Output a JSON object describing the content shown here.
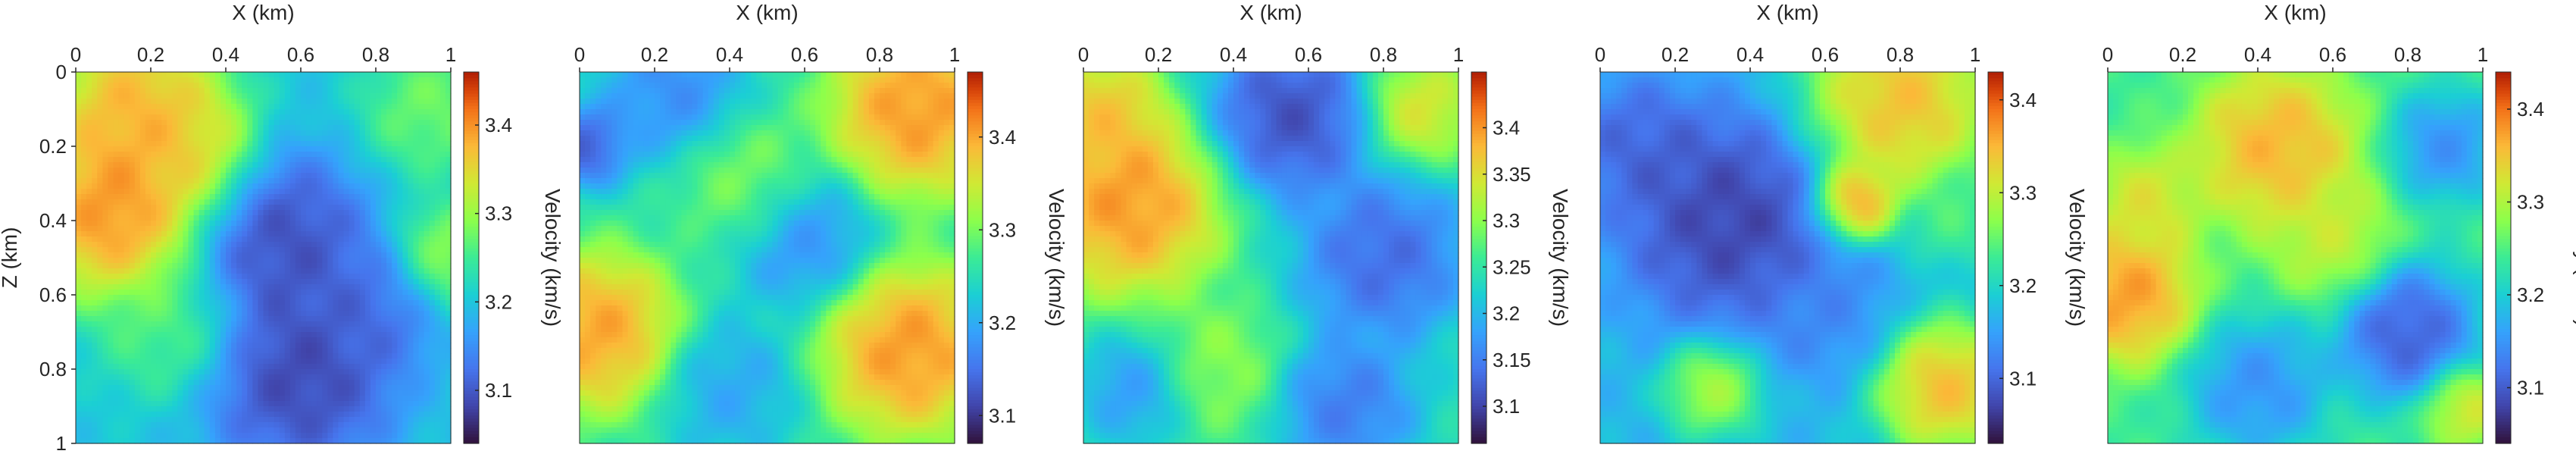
{
  "chart_data": [
    {
      "type": "heatmap",
      "xlabel": "X (km)",
      "ylabel": "Z (km)",
      "xlim": [
        0,
        1
      ],
      "ylim": [
        0,
        1
      ],
      "x_ticks": [
        "0",
        "0.2",
        "0.4",
        "0.6",
        "0.8",
        "1"
      ],
      "y_ticks": [
        "0",
        "0.2",
        "0.4",
        "0.6",
        "0.8",
        "1"
      ],
      "colorbar": {
        "label": "Velocity (km/s)",
        "range": [
          3.04,
          3.46
        ],
        "ticks": [
          {
            "value": 3.1,
            "label": "3.1"
          },
          {
            "value": 3.2,
            "label": "3.2"
          },
          {
            "value": 3.3,
            "label": "3.3"
          },
          {
            "value": 3.4,
            "label": "3.4"
          }
        ]
      },
      "colormap": "turbo",
      "field": {
        "background": 3.2,
        "anomalies": [
          {
            "x": 0.16,
            "z": 0.1,
            "r": 0.13,
            "v": 3.43
          },
          {
            "x": 0.1,
            "z": 0.38,
            "r": 0.13,
            "v": 3.46
          },
          {
            "x": 0.3,
            "z": 0.22,
            "r": 0.1,
            "v": 3.38
          },
          {
            "x": 0.55,
            "z": 0.45,
            "r": 0.13,
            "v": 3.06
          },
          {
            "x": 0.6,
            "z": 0.82,
            "r": 0.14,
            "v": 3.05
          },
          {
            "x": 0.8,
            "z": 0.62,
            "r": 0.1,
            "v": 3.1
          },
          {
            "x": 0.95,
            "z": 0.1,
            "r": 0.1,
            "v": 3.3
          },
          {
            "x": 0.25,
            "z": 0.7,
            "r": 0.1,
            "v": 3.28
          },
          {
            "x": 0.98,
            "z": 0.5,
            "r": 0.08,
            "v": 3.33
          }
        ]
      }
    },
    {
      "type": "heatmap",
      "xlabel": "X (km)",
      "ylabel": "",
      "xlim": [
        0,
        1
      ],
      "ylim": [
        0,
        1
      ],
      "x_ticks": [
        "0",
        "0.2",
        "0.4",
        "0.6",
        "0.8",
        "1"
      ],
      "y_ticks": [],
      "colorbar": {
        "label": "Velocity (km/s)",
        "range": [
          3.07,
          3.47
        ],
        "ticks": [
          {
            "value": 3.1,
            "label": "3.1"
          },
          {
            "value": 3.2,
            "label": "3.2"
          },
          {
            "value": 3.3,
            "label": "3.3"
          },
          {
            "value": 3.4,
            "label": "3.4"
          }
        ]
      },
      "colormap": "turbo",
      "field": {
        "background": 3.25,
        "anomalies": [
          {
            "x": 0.9,
            "z": 0.1,
            "r": 0.13,
            "v": 3.46
          },
          {
            "x": 0.05,
            "z": 0.7,
            "r": 0.12,
            "v": 3.45
          },
          {
            "x": 0.88,
            "z": 0.75,
            "r": 0.13,
            "v": 3.46
          },
          {
            "x": 0.25,
            "z": 0.05,
            "r": 0.1,
            "v": 3.15
          },
          {
            "x": 0.6,
            "z": 0.45,
            "r": 0.1,
            "v": 3.15
          },
          {
            "x": 0.4,
            "z": 0.85,
            "r": 0.1,
            "v": 3.18
          },
          {
            "x": 0.45,
            "z": 0.3,
            "r": 0.1,
            "v": 3.32
          },
          {
            "x": 0.02,
            "z": 0.2,
            "r": 0.06,
            "v": 3.1
          }
        ]
      }
    },
    {
      "type": "heatmap",
      "xlabel": "X (km)",
      "ylabel": "",
      "xlim": [
        0,
        1
      ],
      "ylim": [
        0,
        1
      ],
      "x_ticks": [
        "0",
        "0.2",
        "0.4",
        "0.6",
        "0.8",
        "1"
      ],
      "y_ticks": [],
      "colorbar": {
        "label": "Velocity (km/s)",
        "range": [
          3.06,
          3.46
        ],
        "ticks": [
          {
            "value": 3.1,
            "label": "3.1"
          },
          {
            "value": 3.15,
            "label": "3.15"
          },
          {
            "value": 3.2,
            "label": "3.2"
          },
          {
            "value": 3.25,
            "label": "3.25"
          },
          {
            "value": 3.3,
            "label": "3.3"
          },
          {
            "value": 3.35,
            "label": "3.35"
          },
          {
            "value": 3.4,
            "label": "3.4"
          }
        ]
      },
      "colormap": "turbo",
      "field": {
        "background": 3.24,
        "anomalies": [
          {
            "x": 0.12,
            "z": 0.35,
            "r": 0.14,
            "v": 3.45
          },
          {
            "x": 0.05,
            "z": 0.1,
            "r": 0.09,
            "v": 3.4
          },
          {
            "x": 0.55,
            "z": 0.12,
            "r": 0.12,
            "v": 3.07
          },
          {
            "x": 0.8,
            "z": 0.5,
            "r": 0.12,
            "v": 3.1
          },
          {
            "x": 0.9,
            "z": 0.1,
            "r": 0.08,
            "v": 3.38
          },
          {
            "x": 0.35,
            "z": 0.8,
            "r": 0.1,
            "v": 3.32
          },
          {
            "x": 0.7,
            "z": 0.9,
            "r": 0.1,
            "v": 3.12
          },
          {
            "x": 0.15,
            "z": 0.85,
            "r": 0.08,
            "v": 3.15
          }
        ]
      }
    },
    {
      "type": "heatmap",
      "xlabel": "X (km)",
      "ylabel": "",
      "xlim": [
        0,
        1
      ],
      "ylim": [
        0,
        1
      ],
      "x_ticks": [
        "0",
        "0.2",
        "0.4",
        "0.6",
        "0.8",
        "1"
      ],
      "y_ticks": [],
      "colorbar": {
        "label": "Velocity (km/s)",
        "range": [
          3.03,
          3.43
        ],
        "ticks": [
          {
            "value": 3.1,
            "label": "3.1"
          },
          {
            "value": 3.2,
            "label": "3.2"
          },
          {
            "value": 3.3,
            "label": "3.3"
          },
          {
            "value": 3.4,
            "label": "3.4"
          }
        ]
      },
      "colormap": "turbo",
      "field": {
        "background": 3.17,
        "anomalies": [
          {
            "x": 0.8,
            "z": 0.08,
            "r": 0.14,
            "v": 3.4
          },
          {
            "x": 0.68,
            "z": 0.35,
            "r": 0.06,
            "v": 3.43
          },
          {
            "x": 0.35,
            "z": 0.4,
            "r": 0.16,
            "v": 3.04
          },
          {
            "x": 0.1,
            "z": 0.2,
            "r": 0.1,
            "v": 3.08
          },
          {
            "x": 0.92,
            "z": 0.85,
            "r": 0.1,
            "v": 3.4
          },
          {
            "x": 0.3,
            "z": 0.85,
            "r": 0.07,
            "v": 3.32
          },
          {
            "x": 0.6,
            "z": 0.65,
            "r": 0.1,
            "v": 3.12
          },
          {
            "x": 0.95,
            "z": 0.4,
            "r": 0.07,
            "v": 3.25
          }
        ]
      }
    },
    {
      "type": "heatmap",
      "xlabel": "X (km)",
      "ylabel": "",
      "xlim": [
        0,
        1
      ],
      "ylim": [
        0,
        1
      ],
      "x_ticks": [
        "0",
        "0.2",
        "0.4",
        "0.6",
        "0.8",
        "1"
      ],
      "y_ticks": [],
      "colorbar": {
        "label": "Velocity (km/s)",
        "range": [
          3.04,
          3.44
        ],
        "ticks": [
          {
            "value": 3.1,
            "label": "3.1"
          },
          {
            "value": 3.2,
            "label": "3.2"
          },
          {
            "value": 3.3,
            "label": "3.3"
          },
          {
            "value": 3.4,
            "label": "3.4"
          }
        ]
      },
      "colormap": "turbo",
      "field": {
        "background": 3.24,
        "anomalies": [
          {
            "x": 0.45,
            "z": 0.2,
            "r": 0.12,
            "v": 3.4
          },
          {
            "x": 0.05,
            "z": 0.6,
            "r": 0.1,
            "v": 3.42
          },
          {
            "x": 0.1,
            "z": 0.35,
            "r": 0.08,
            "v": 3.35
          },
          {
            "x": 0.8,
            "z": 0.7,
            "r": 0.1,
            "v": 3.06
          },
          {
            "x": 0.9,
            "z": 0.2,
            "r": 0.08,
            "v": 3.12
          },
          {
            "x": 0.4,
            "z": 0.85,
            "r": 0.1,
            "v": 3.12
          },
          {
            "x": 0.6,
            "z": 0.45,
            "r": 0.09,
            "v": 3.33
          },
          {
            "x": 0.95,
            "z": 0.9,
            "r": 0.06,
            "v": 3.35
          }
        ]
      }
    }
  ]
}
